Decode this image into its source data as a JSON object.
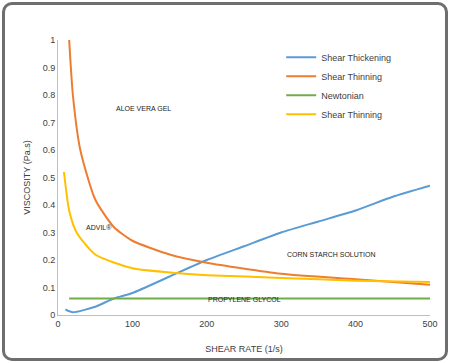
{
  "chart_data": {
    "type": "line",
    "x_label": "SHEAR RATE (1/s)",
    "y_label": "VISCOSITY (Pa.s)",
    "xlim": [
      0,
      500
    ],
    "xticks": [
      0,
      100,
      200,
      300,
      400,
      500
    ],
    "ylim": [
      0,
      1
    ],
    "yticks": [
      0,
      0.1,
      0.2,
      0.3,
      0.4,
      0.5,
      0.6,
      0.7,
      0.8,
      0.9,
      1
    ],
    "grid": false,
    "legend": "upper right",
    "series": [
      {
        "name": "Shear Thickening",
        "color": "#5b9bd5",
        "x": [
          10,
          20,
          50,
          75,
          100,
          150,
          200,
          250,
          300,
          350,
          400,
          450,
          500
        ],
        "values": [
          0.02,
          0.01,
          0.03,
          0.06,
          0.08,
          0.14,
          0.2,
          0.25,
          0.3,
          0.34,
          0.38,
          0.43,
          0.47
        ]
      },
      {
        "name": "Shear Thinning",
        "color": "#ed7d31",
        "x": [
          15,
          20,
          30,
          50,
          75,
          100,
          150,
          200,
          300,
          400,
          500
        ],
        "values": [
          1.0,
          0.8,
          0.6,
          0.42,
          0.32,
          0.27,
          0.22,
          0.19,
          0.15,
          0.13,
          0.11
        ]
      },
      {
        "name": "Newtonian",
        "color": "#70ad47",
        "x": [
          15,
          500
        ],
        "values": [
          0.06,
          0.06
        ]
      },
      {
        "name": "Shear Thinning",
        "color": "#ffc000",
        "x": [
          8,
          15,
          25,
          50,
          100,
          150,
          200,
          300,
          400,
          500
        ],
        "values": [
          0.52,
          0.38,
          0.3,
          0.22,
          0.17,
          0.155,
          0.145,
          0.135,
          0.125,
          0.12
        ]
      }
    ],
    "annotations": [
      "ALOE VERA GEL",
      "ADVIL®",
      "CORN STARCH SOLUTION",
      "PROPYLENE GLYCOL"
    ]
  }
}
